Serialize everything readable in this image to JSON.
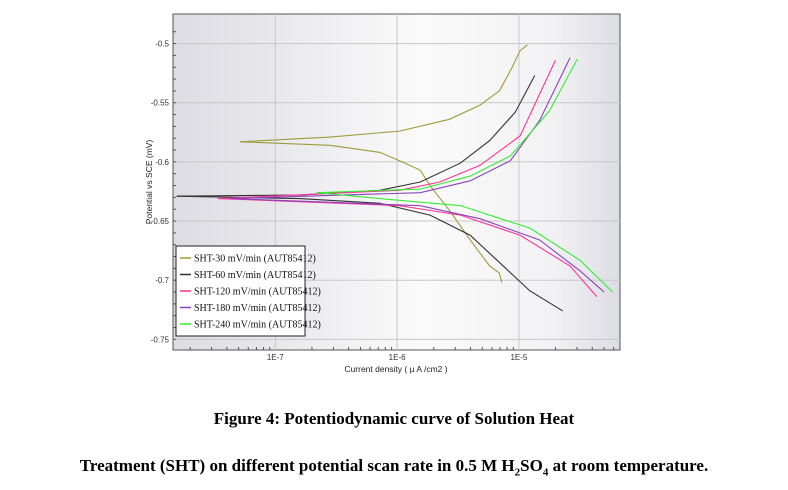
{
  "chart_data": {
    "type": "line",
    "title": "",
    "xlabel": "Current density ( µ A /cm2 )",
    "ylabel": "Potential vs SCE  (mV)",
    "xscale": "log10",
    "xlim_log10": [
      -7.84,
      -4.17
    ],
    "ylim": [
      -0.759,
      -0.475
    ],
    "xticks": [
      {
        "value": -7,
        "label": "1E-7"
      },
      {
        "value": -6,
        "label": "1E-6"
      },
      {
        "value": -5,
        "label": "1E-5"
      }
    ],
    "yticks": [
      {
        "value": -0.5,
        "label": "-0.5"
      },
      {
        "value": -0.55,
        "label": "-0.55"
      },
      {
        "value": -0.6,
        "label": "-0.6"
      },
      {
        "value": -0.65,
        "label": "-0.65"
      },
      {
        "value": -0.7,
        "label": "-0.7"
      },
      {
        "value": -0.75,
        "label": "-0.75"
      }
    ],
    "grid": true,
    "legend_position": "bottom-left",
    "series": [
      {
        "name": "SHT-30 mV/min  (AUT85412)",
        "color": "#9c9c3c",
        "anodic": [
          [
            -7.29,
            -0.583
          ],
          [
            -6.55,
            -0.579
          ],
          [
            -5.98,
            -0.574
          ],
          [
            -5.57,
            -0.564
          ],
          [
            -5.32,
            -0.552
          ],
          [
            -5.16,
            -0.54
          ],
          [
            -5.06,
            -0.521
          ],
          [
            -4.99,
            -0.506
          ],
          [
            -4.93,
            -0.501
          ]
        ],
        "cathodic": [
          [
            -7.29,
            -0.583
          ],
          [
            -6.55,
            -0.586
          ],
          [
            -6.14,
            -0.592
          ],
          [
            -5.98,
            -0.599
          ],
          [
            -5.81,
            -0.607
          ],
          [
            -5.73,
            -0.62
          ],
          [
            -5.57,
            -0.641
          ],
          [
            -5.4,
            -0.666
          ],
          [
            -5.24,
            -0.688
          ],
          [
            -5.16,
            -0.694
          ],
          [
            -5.14,
            -0.702
          ]
        ]
      },
      {
        "name": "SHT-60 mV/min  (AUT85412)",
        "color": "#333333",
        "anodic": [
          [
            -7.81,
            -0.629
          ],
          [
            -6.8,
            -0.628
          ],
          [
            -6.14,
            -0.624
          ],
          [
            -5.81,
            -0.617
          ],
          [
            -5.48,
            -0.601
          ],
          [
            -5.24,
            -0.582
          ],
          [
            -5.03,
            -0.558
          ],
          [
            -4.87,
            -0.527
          ]
        ],
        "cathodic": [
          [
            -7.81,
            -0.629
          ],
          [
            -6.8,
            -0.631
          ],
          [
            -6.14,
            -0.635
          ],
          [
            -5.73,
            -0.645
          ],
          [
            -5.4,
            -0.662
          ],
          [
            -5.16,
            -0.685
          ],
          [
            -4.91,
            -0.709
          ],
          [
            -4.64,
            -0.726
          ]
        ]
      },
      {
        "name": "SHT-120 mV/min  (AUT85412)",
        "color": "#ff3399",
        "anodic": [
          [
            -7.47,
            -0.631
          ],
          [
            -5.98,
            -0.624
          ],
          [
            -5.65,
            -0.617
          ],
          [
            -5.32,
            -0.603
          ],
          [
            -4.99,
            -0.578
          ],
          [
            -4.7,
            -0.514
          ]
        ],
        "cathodic": [
          [
            -7.47,
            -0.631
          ],
          [
            -5.98,
            -0.637
          ],
          [
            -5.48,
            -0.645
          ],
          [
            -4.99,
            -0.662
          ],
          [
            -4.58,
            -0.688
          ],
          [
            -4.36,
            -0.714
          ]
        ]
      },
      {
        "name": "SHT-180 mV/min  (AUT85412)",
        "color": "#8844bb",
        "anodic": [
          [
            -7.37,
            -0.631
          ],
          [
            -5.81,
            -0.626
          ],
          [
            -5.4,
            -0.616
          ],
          [
            -5.07,
            -0.599
          ],
          [
            -4.83,
            -0.565
          ],
          [
            -4.58,
            -0.512
          ]
        ],
        "cathodic": [
          [
            -7.37,
            -0.631
          ],
          [
            -5.81,
            -0.637
          ],
          [
            -5.32,
            -0.648
          ],
          [
            -4.83,
            -0.666
          ],
          [
            -4.5,
            -0.692
          ],
          [
            -4.3,
            -0.71
          ]
        ]
      },
      {
        "name": "SHT-240 mV/min  (AUT85412)",
        "color": "#33ee33",
        "anodic": [
          [
            -6.66,
            -0.626
          ],
          [
            -5.81,
            -0.623
          ],
          [
            -5.4,
            -0.612
          ],
          [
            -5.07,
            -0.595
          ],
          [
            -4.75,
            -0.557
          ],
          [
            -4.52,
            -0.513
          ]
        ],
        "cathodic": [
          [
            -6.66,
            -0.626
          ],
          [
            -6.14,
            -0.631
          ],
          [
            -5.48,
            -0.637
          ],
          [
            -4.91,
            -0.656
          ],
          [
            -4.5,
            -0.683
          ],
          [
            -4.23,
            -0.71
          ]
        ]
      }
    ]
  },
  "caption": {
    "line1": "Figure 4: Potentiodynamic curve of Solution Heat",
    "line2_pre": "Treatment (SHT) on different potential scan rate in 0.5 M H",
    "line2_sub1": "2",
    "line2_mid": "SO",
    "line2_sub2": "4",
    "line2_post": " at room temperature."
  }
}
